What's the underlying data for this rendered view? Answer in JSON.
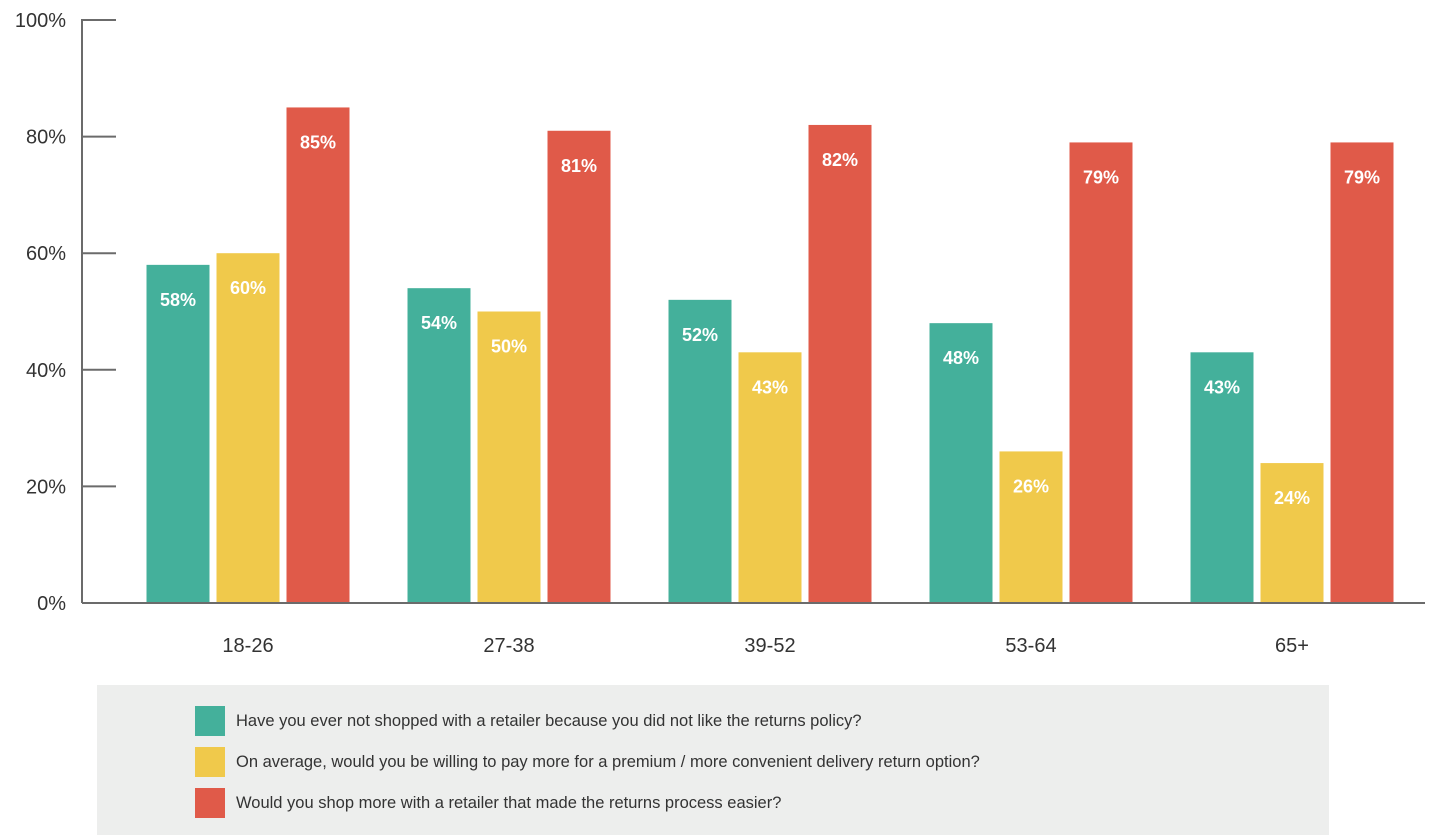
{
  "chart_data": {
    "type": "bar",
    "categories": [
      "18-26",
      "27-38",
      "39-52",
      "53-64",
      "65+"
    ],
    "series": [
      {
        "name": "Have you ever not shopped with a retailer because you did not like the returns policy?",
        "color": "#44b09b",
        "values": [
          58,
          54,
          52,
          48,
          43
        ],
        "labels": [
          "58%",
          "54%",
          "52%",
          "48%",
          "43%"
        ]
      },
      {
        "name": "On average, would you be willing to pay more for a premium / more convenient delivery return option?",
        "color": "#f0c94b",
        "values": [
          60,
          50,
          43,
          26,
          24
        ],
        "labels": [
          "60%",
          "50%",
          "43%",
          "26%",
          "24%"
        ]
      },
      {
        "name": "Would you shop more with a retailer that made the returns process easier?",
        "color": "#e05a49",
        "values": [
          85,
          81,
          82,
          79,
          79
        ],
        "labels": [
          "85%",
          "81%",
          "82%",
          "79%",
          "79%"
        ]
      }
    ],
    "ylim": [
      0,
      100
    ],
    "yticks": [
      0,
      20,
      40,
      60,
      80,
      100
    ],
    "ytick_labels": [
      "0%",
      "20%",
      "40%",
      "60%",
      "80%",
      "100%"
    ],
    "title": "",
    "xlabel": "",
    "ylabel": "",
    "grid": false,
    "legend_position": "bottom"
  }
}
